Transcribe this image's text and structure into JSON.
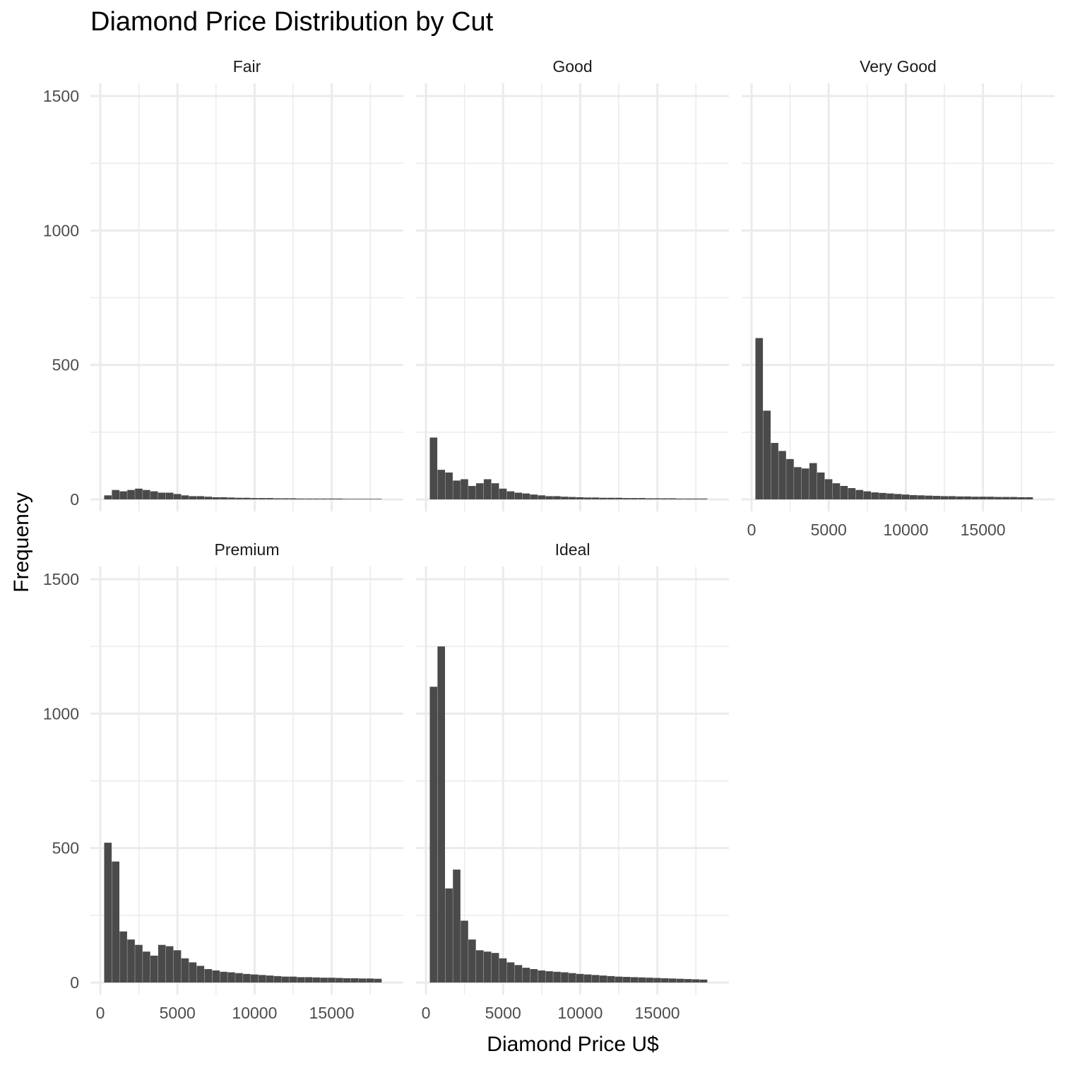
{
  "chart_data": {
    "type": "bar",
    "title": "Diamond Price Distribution by Cut",
    "xlabel": "Diamond Price U$",
    "ylabel": "Frequency",
    "xlim": [
      0,
      19000
    ],
    "ylim": [
      0,
      1500
    ],
    "x_ticks": [
      0,
      5000,
      10000,
      15000
    ],
    "y_ticks": [
      0,
      500,
      1000,
      1500
    ],
    "grid": true,
    "bar_color": "#4a4a4a",
    "grid_color": "#ebebeb",
    "x_labels_shown_on": [
      "Very Good",
      "Premium",
      "Ideal"
    ],
    "y_labels_shown_on": [
      "Fair",
      "Premium"
    ],
    "series": [
      {
        "name": "Fair",
        "x": [
          500,
          1000,
          1500,
          2000,
          2500,
          3000,
          3500,
          4000,
          4500,
          5000,
          5500,
          6000,
          6500,
          7000,
          7500,
          8000,
          8500,
          9000,
          9500,
          10000,
          10500,
          11000,
          11500,
          12000,
          12500,
          13000,
          13500,
          14000,
          14500,
          15000,
          15500,
          16000,
          16500,
          17000,
          17500,
          18000
        ],
        "values": [
          15,
          35,
          30,
          35,
          40,
          35,
          30,
          25,
          25,
          20,
          15,
          12,
          12,
          10,
          8,
          8,
          7,
          6,
          6,
          5,
          5,
          5,
          4,
          4,
          4,
          3,
          3,
          3,
          3,
          3,
          3,
          2,
          2,
          2,
          2,
          2
        ]
      },
      {
        "name": "Good",
        "x": [
          500,
          1000,
          1500,
          2000,
          2500,
          3000,
          3500,
          4000,
          4500,
          5000,
          5500,
          6000,
          6500,
          7000,
          7500,
          8000,
          8500,
          9000,
          9500,
          10000,
          10500,
          11000,
          11500,
          12000,
          12500,
          13000,
          13500,
          14000,
          14500,
          15000,
          15500,
          16000,
          16500,
          17000,
          17500,
          18000
        ],
        "values": [
          230,
          110,
          100,
          70,
          75,
          50,
          60,
          75,
          60,
          40,
          30,
          25,
          22,
          18,
          15,
          12,
          12,
          10,
          9,
          8,
          7,
          7,
          6,
          6,
          6,
          5,
          5,
          5,
          4,
          4,
          4,
          4,
          3,
          3,
          3,
          3
        ]
      },
      {
        "name": "Very Good",
        "x": [
          500,
          1000,
          1500,
          2000,
          2500,
          3000,
          3500,
          4000,
          4500,
          5000,
          5500,
          6000,
          6500,
          7000,
          7500,
          8000,
          8500,
          9000,
          9500,
          10000,
          10500,
          11000,
          11500,
          12000,
          12500,
          13000,
          13500,
          14000,
          14500,
          15000,
          15500,
          16000,
          16500,
          17000,
          17500,
          18000
        ],
        "values": [
          600,
          330,
          210,
          180,
          150,
          120,
          115,
          135,
          100,
          75,
          60,
          50,
          42,
          35,
          30,
          26,
          24,
          22,
          20,
          18,
          16,
          15,
          14,
          13,
          12,
          12,
          11,
          11,
          10,
          10,
          10,
          9,
          9,
          9,
          8,
          8
        ]
      },
      {
        "name": "Premium",
        "x": [
          500,
          1000,
          1500,
          2000,
          2500,
          3000,
          3500,
          4000,
          4500,
          5000,
          5500,
          6000,
          6500,
          7000,
          7500,
          8000,
          8500,
          9000,
          9500,
          10000,
          10500,
          11000,
          11500,
          12000,
          12500,
          13000,
          13500,
          14000,
          14500,
          15000,
          15500,
          16000,
          16500,
          17000,
          17500,
          18000
        ],
        "values": [
          520,
          450,
          190,
          160,
          140,
          115,
          100,
          140,
          135,
          120,
          90,
          75,
          62,
          50,
          45,
          40,
          38,
          35,
          32,
          30,
          28,
          26,
          24,
          22,
          22,
          20,
          20,
          19,
          18,
          18,
          17,
          16,
          16,
          15,
          15,
          14
        ]
      },
      {
        "name": "Ideal",
        "x": [
          500,
          1000,
          1500,
          2000,
          2500,
          3000,
          3500,
          4000,
          4500,
          5000,
          5500,
          6000,
          6500,
          7000,
          7500,
          8000,
          8500,
          9000,
          9500,
          10000,
          10500,
          11000,
          11500,
          12000,
          12500,
          13000,
          13500,
          14000,
          14500,
          15000,
          15500,
          16000,
          16500,
          17000,
          17500,
          18000
        ],
        "values": [
          1100,
          1250,
          350,
          420,
          230,
          160,
          120,
          115,
          110,
          90,
          75,
          65,
          55,
          50,
          45,
          42,
          40,
          38,
          35,
          32,
          30,
          28,
          26,
          24,
          22,
          21,
          20,
          19,
          18,
          17,
          16,
          15,
          14,
          13,
          12,
          11
        ]
      }
    ]
  }
}
